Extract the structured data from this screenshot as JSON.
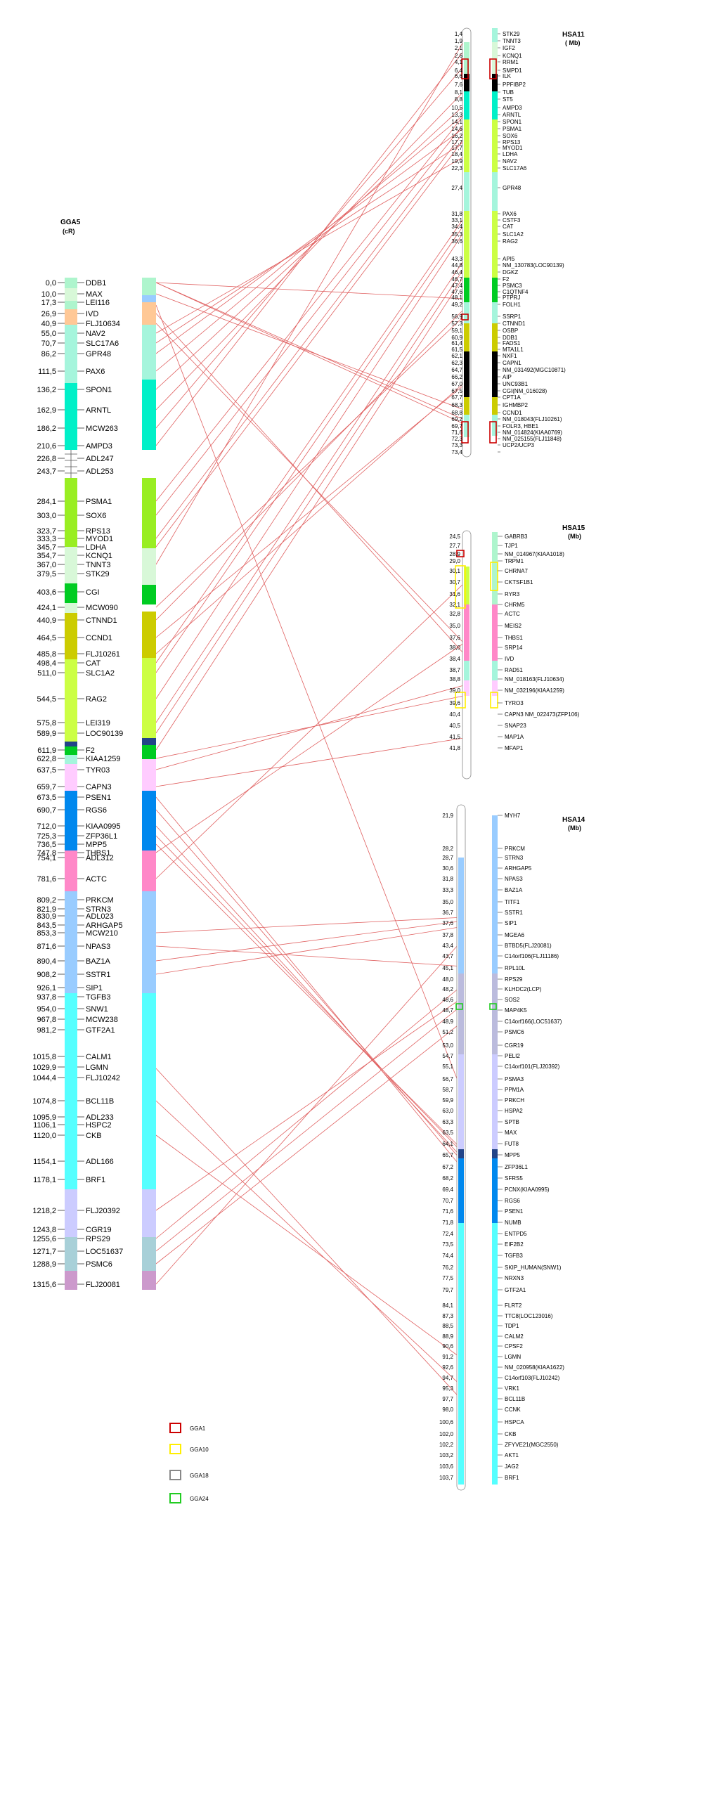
{
  "gga5": {
    "title": "GGA5",
    "unit": "(cR)",
    "markers": [
      {
        "pos": "0,0",
        "name": "DDB1"
      },
      {
        "pos": "10,0",
        "name": "MAX"
      },
      {
        "pos": "17,3",
        "name": "LEI116"
      },
      {
        "pos": "26,9",
        "name": "IVD"
      },
      {
        "pos": "40,9",
        "name": "FLJ10634"
      },
      {
        "pos": "55,0",
        "name": "NAV2"
      },
      {
        "pos": "70,7",
        "name": "SLC17A6"
      },
      {
        "pos": "86,2",
        "name": "GPR48"
      },
      {
        "pos": "111,5",
        "name": "PAX6"
      },
      {
        "pos": "136,2",
        "name": "SPON1"
      },
      {
        "pos": "162,9",
        "name": "ARNTL"
      },
      {
        "pos": "186,2",
        "name": "MCW263"
      },
      {
        "pos": "210,6",
        "name": "AMPD3"
      },
      {
        "pos": "226,8",
        "name": "ADL247"
      },
      {
        "pos": "243,7",
        "name": "ADL253"
      },
      {
        "pos": "284,1",
        "name": "PSMA1"
      },
      {
        "pos": "303,0",
        "name": "SOX6"
      },
      {
        "pos": "323,7",
        "name": "RPS13"
      },
      {
        "pos": "333,3",
        "name": "MYOD1"
      },
      {
        "pos": "345,7",
        "name": "LDHA"
      },
      {
        "pos": "354,7",
        "name": "KCNQ1"
      },
      {
        "pos": "367,0",
        "name": "TNNT3"
      },
      {
        "pos": "379,5",
        "name": "STK29"
      },
      {
        "pos": "403,6",
        "name": "CGI"
      },
      {
        "pos": "424,1",
        "name": "MCW090"
      },
      {
        "pos": "440,9",
        "name": "CTNND1"
      },
      {
        "pos": "464,5",
        "name": "CCND1"
      },
      {
        "pos": "485,8",
        "name": "FLJ10261"
      },
      {
        "pos": "498,4",
        "name": "CAT"
      },
      {
        "pos": "511,0",
        "name": "SLC1A2"
      },
      {
        "pos": "544,5",
        "name": "RAG2"
      },
      {
        "pos": "575,8",
        "name": "LEI319"
      },
      {
        "pos": "589,9",
        "name": "LOC90139"
      },
      {
        "pos": "611,9",
        "name": "F2"
      },
      {
        "pos": "622,8",
        "name": "KIAA1259"
      },
      {
        "pos": "637,5",
        "name": "TYR03"
      },
      {
        "pos": "659,7",
        "name": "CAPN3"
      },
      {
        "pos": "673,5",
        "name": "PSEN1"
      },
      {
        "pos": "690,7",
        "name": "RGS6"
      },
      {
        "pos": "712,0",
        "name": "KIAA0995"
      },
      {
        "pos": "725,3",
        "name": "ZFP36L1"
      },
      {
        "pos": "736,5",
        "name": "MPP5"
      },
      {
        "pos": "747,8",
        "name": "THBS1"
      },
      {
        "pos": "754,1",
        "name": "ADL312"
      },
      {
        "pos": "781,6",
        "name": "ACTC"
      },
      {
        "pos": "809,2",
        "name": "PRKCM"
      },
      {
        "pos": "821,9",
        "name": "STRN3"
      },
      {
        "pos": "830,9",
        "name": "ADL023"
      },
      {
        "pos": "843,5",
        "name": "ARHGAP5"
      },
      {
        "pos": "853,3",
        "name": "MCW210"
      },
      {
        "pos": "871,6",
        "name": "NPAS3"
      },
      {
        "pos": "890,4",
        "name": "BAZ1A"
      },
      {
        "pos": "908,2",
        "name": "SSTR1"
      },
      {
        "pos": "926,1",
        "name": "SIP1"
      },
      {
        "pos": "937,8",
        "name": "TGFB3"
      },
      {
        "pos": "954,0",
        "name": "SNW1"
      },
      {
        "pos": "967,8",
        "name": "MCW238"
      },
      {
        "pos": "981,2",
        "name": "GTF2A1"
      },
      {
        "pos": "1015,8",
        "name": "CALM1"
      },
      {
        "pos": "1029,9",
        "name": "LGMN"
      },
      {
        "pos": "1044,4",
        "name": "FLJ10242"
      },
      {
        "pos": "1074,8",
        "name": "BCL11B"
      },
      {
        "pos": "1095,9",
        "name": "ADL233"
      },
      {
        "pos": "1106,1",
        "name": "HSPC2"
      },
      {
        "pos": "1120,0",
        "name": "CKB"
      },
      {
        "pos": "1154,1",
        "name": "ADL166"
      },
      {
        "pos": "1178,1",
        "name": "BRF1"
      },
      {
        "pos": "1218,2",
        "name": "FLJ20392"
      },
      {
        "pos": "1243,8",
        "name": "CGR19"
      },
      {
        "pos": "1255,6",
        "name": "RPS29"
      },
      {
        "pos": "1271,7",
        "name": "LOC51637"
      },
      {
        "pos": "1288,9",
        "name": "PSMC6"
      },
      {
        "pos": "1315,6",
        "name": "FLJ20081"
      }
    ]
  },
  "hsa11": {
    "title": "HSA11",
    "unit": "( Mb)",
    "markers": [
      {
        "pos": "1,4",
        "name": "STK29"
      },
      {
        "pos": "1,9",
        "name": "TNNT3"
      },
      {
        "pos": "2,1",
        "name": "IGF2"
      },
      {
        "pos": "2,6",
        "name": "KCNQ1"
      },
      {
        "pos": "4,1",
        "name": "RRM1"
      },
      {
        "pos": "6,4",
        "name": "SMPD1"
      },
      {
        "pos": "6,6",
        "name": "ILK"
      },
      {
        "pos": "7,6",
        "name": "PPFIBP2"
      },
      {
        "pos": "8,1",
        "name": "TUB"
      },
      {
        "pos": "8,8",
        "name": "ST5"
      },
      {
        "pos": "10,5",
        "name": "AMPD3"
      },
      {
        "pos": "13,3",
        "name": "ARNTL"
      },
      {
        "pos": "14,1",
        "name": "SPON1"
      },
      {
        "pos": "14,6",
        "name": "PSMA1"
      },
      {
        "pos": "16,2",
        "name": "SOX6"
      },
      {
        "pos": "17,7",
        "name": "RPS13"
      },
      {
        "pos": "17,7",
        "name": "MYOD1"
      },
      {
        "pos": "18,4",
        "name": "LDHA"
      },
      {
        "pos": "19,9",
        "name": "NAV2"
      },
      {
        "pos": "22,3",
        "name": "SLC17A6"
      },
      {
        "pos": "27,4",
        "name": "GPR48"
      },
      {
        "pos": "31,8",
        "name": "PAX6"
      },
      {
        "pos": "33,1",
        "name": "CSTF3"
      },
      {
        "pos": "34,4",
        "name": "CAT"
      },
      {
        "pos": "35,3",
        "name": "SLC1A2"
      },
      {
        "pos": "36,6",
        "name": "RAG2"
      },
      {
        "pos": "43,3",
        "name": "API5"
      },
      {
        "pos": "44,8",
        "name": "NM_130783(LOC90139)"
      },
      {
        "pos": "46,4",
        "name": "DGKZ"
      },
      {
        "pos": "46,7",
        "name": "F2"
      },
      {
        "pos": "47,4",
        "name": "PSMC3"
      },
      {
        "pos": "47,6",
        "name": "C1QTNF4"
      },
      {
        "pos": "48,1",
        "name": "PTPRJ"
      },
      {
        "pos": "49,2",
        "name": "FOLH1"
      },
      {
        "pos": "56,9",
        "name": "SSRP1"
      },
      {
        "pos": "57,3",
        "name": "CTNND1"
      },
      {
        "pos": "59,1",
        "name": "OSBP"
      },
      {
        "pos": "60,9",
        "name": "DDB1"
      },
      {
        "pos": "61,4",
        "name": "FADS1"
      },
      {
        "pos": "61,5",
        "name": "MTA1L1"
      },
      {
        "pos": "62,1",
        "name": "NXF1"
      },
      {
        "pos": "62,3",
        "name": "CAPN1"
      },
      {
        "pos": "64,7",
        "name": "NM_031492(MGC10871)"
      },
      {
        "pos": "66,2",
        "name": "AIP"
      },
      {
        "pos": "67,0",
        "name": "UNC93B1"
      },
      {
        "pos": "67,5",
        "name": "CGI(NM_016028)"
      },
      {
        "pos": "67,7",
        "name": "CPT1A"
      },
      {
        "pos": "68,3",
        "name": "IGHMBP2"
      },
      {
        "pos": "68,8",
        "name": "CCND1"
      },
      {
        "pos": "69,2",
        "name": "NM_018043(FLJ10261)"
      },
      {
        "pos": "69,7",
        "name": "FOLR3, HBE1"
      },
      {
        "pos": "71,6",
        "name": "NM_014824(KIAA0769)"
      },
      {
        "pos": "72,3",
        "name": "NM_025155(FLJ11848)"
      },
      {
        "pos": "73,3",
        "name": "UCP2/UCP3"
      },
      {
        "pos": "73,4",
        "name": ""
      }
    ]
  },
  "hsa15": {
    "title": "HSA15",
    "unit": "(Mb)",
    "markers": [
      {
        "pos": "24,5",
        "name": "GABRB3"
      },
      {
        "pos": "27,7",
        "name": "TJP1"
      },
      {
        "pos": "28,9",
        "name": "NM_014967(KIAA1018)"
      },
      {
        "pos": "29,0",
        "name": "TRPM1"
      },
      {
        "pos": "30,1",
        "name": "CHRNA7"
      },
      {
        "pos": "30,7",
        "name": "CKTSF1B1"
      },
      {
        "pos": "31,6",
        "name": "RYR3"
      },
      {
        "pos": "32,1",
        "name": "CHRM5"
      },
      {
        "pos": "32,8",
        "name": "ACTC"
      },
      {
        "pos": "35,0",
        "name": "MEIS2"
      },
      {
        "pos": "37,6",
        "name": "THBS1"
      },
      {
        "pos": "38,0",
        "name": "SRP14"
      },
      {
        "pos": "38,4",
        "name": "IVD"
      },
      {
        "pos": "38,7",
        "name": "RAD51"
      },
      {
        "pos": "38,8",
        "name": "NM_018163(FLJ10634)"
      },
      {
        "pos": "39,0",
        "name": "NM_032196(KIAA1259)"
      },
      {
        "pos": "39,6",
        "name": "TYRO3"
      },
      {
        "pos": "40,4",
        "name": "CAPN3  NM_022473(ZFP106)"
      },
      {
        "pos": "40,5",
        "name": "SNAP23"
      },
      {
        "pos": "41,5",
        "name": "MAP1A"
      },
      {
        "pos": "41,8",
        "name": "MFAP1"
      }
    ]
  },
  "hsa14": {
    "title": "HSA14",
    "unit": "(Mb)",
    "markers": [
      {
        "pos": "21,9",
        "name": "MYH7"
      },
      {
        "pos": "28,2",
        "name": "PRKCM"
      },
      {
        "pos": "28,7",
        "name": "STRN3"
      },
      {
        "pos": "30,6",
        "name": "ARHGAP5"
      },
      {
        "pos": "31,8",
        "name": "NPAS3"
      },
      {
        "pos": "33,3",
        "name": "BAZ1A"
      },
      {
        "pos": "35,0",
        "name": "TITF1"
      },
      {
        "pos": "36,7",
        "name": "SSTR1"
      },
      {
        "pos": "37,6",
        "name": "SIP1"
      },
      {
        "pos": "37,8",
        "name": "MGEA6"
      },
      {
        "pos": "43,4",
        "name": "BTBD5(FLJ20081)"
      },
      {
        "pos": "43,7",
        "name": "C14orf106(FLJ11186)"
      },
      {
        "pos": "45,1",
        "name": "RPL10L"
      },
      {
        "pos": "48,0",
        "name": "RPS29"
      },
      {
        "pos": "48,2",
        "name": "KLHDC2(LCP)"
      },
      {
        "pos": "48,6",
        "name": "SOS2"
      },
      {
        "pos": "48,7",
        "name": "MAP4K5"
      },
      {
        "pos": "48,9",
        "name": "C14orf166(LOC51637)"
      },
      {
        "pos": "51,2",
        "name": "PSMC6"
      },
      {
        "pos": "53,0",
        "name": "CGR19"
      },
      {
        "pos": "54,7",
        "name": "PELI2"
      },
      {
        "pos": "55,1",
        "name": "C14orf101(FLJ20392)"
      },
      {
        "pos": "56,7",
        "name": "PSMA3"
      },
      {
        "pos": "58,7",
        "name": "PPM1A"
      },
      {
        "pos": "59,9",
        "name": "PRKCH"
      },
      {
        "pos": "63,0",
        "name": "HSPA2"
      },
      {
        "pos": "63,3",
        "name": "SPTB"
      },
      {
        "pos": "63,5",
        "name": "MAX"
      },
      {
        "pos": "64,1",
        "name": "FUT8"
      },
      {
        "pos": "65,7",
        "name": "MPP5"
      },
      {
        "pos": "67,2",
        "name": "ZFP36L1"
      },
      {
        "pos": "68,2",
        "name": "SFRS5"
      },
      {
        "pos": "69,4",
        "name": "PCNX(KIAA0995)"
      },
      {
        "pos": "70,7",
        "name": "RGS6"
      },
      {
        "pos": "71,6",
        "name": "PSEN1"
      },
      {
        "pos": "71,8",
        "name": "NUMB"
      },
      {
        "pos": "72,4",
        "name": "ENTPD5"
      },
      {
        "pos": "73,5",
        "name": "EIF2B2"
      },
      {
        "pos": "74,4",
        "name": "TGFB3"
      },
      {
        "pos": "76,2",
        "name": "SKIP_HUMAN(SNW1)"
      },
      {
        "pos": "77,5",
        "name": "NRXN3"
      },
      {
        "pos": "79,7",
        "name": "GTF2A1"
      },
      {
        "pos": "84,1",
        "name": "FLRT2"
      },
      {
        "pos": "87,3",
        "name": "TTC8(LOC123016)"
      },
      {
        "pos": "88,5",
        "name": "TDP1"
      },
      {
        "pos": "88,9",
        "name": "CALM2"
      },
      {
        "pos": "90,6",
        "name": "CPSF2"
      },
      {
        "pos": "91,2",
        "name": "LGMN"
      },
      {
        "pos": "92,6",
        "name": "NM_020958(KIAA1622)"
      },
      {
        "pos": "94,7",
        "name": "C14orf103(FLJ10242)"
      },
      {
        "pos": "95,3",
        "name": "VRK1"
      },
      {
        "pos": "97,7",
        "name": "BCL11B"
      },
      {
        "pos": "98,0",
        "name": "CCNK"
      },
      {
        "pos": "100,6",
        "name": "HSPCA"
      },
      {
        "pos": "102,0",
        "name": "CKB"
      },
      {
        "pos": "102,2",
        "name": "ZFYVE21(MGC2550)"
      },
      {
        "pos": "103,2",
        "name": "AKT1"
      },
      {
        "pos": "103,6",
        "name": "JAG2"
      },
      {
        "pos": "103,7",
        "name": "BRF1"
      }
    ]
  },
  "legend": [
    {
      "label": "GGA1",
      "color": "#cc0000"
    },
    {
      "label": "GGA10",
      "color": "#ffee00"
    },
    {
      "label": "GGA18",
      "color": "#888888"
    },
    {
      "label": "GGA24",
      "color": "#22cc22"
    }
  ],
  "colors": {
    "connector": "#e06060",
    "mint": "#aef5cd",
    "peach": "#ffc896",
    "turquoise": "#00f0c8",
    "lightaqua": "#a5f5dc",
    "lime": "#99ee22",
    "pale": "#d8f8d8",
    "green": "#00cc22",
    "olive": "#cccc00",
    "yellowgreen": "#ccff44",
    "navy": "#224488",
    "pinklight": "#ffccff",
    "blue": "#0088ee",
    "pink": "#ff88c8",
    "lightblue": "#99ccff",
    "cyan": "#55ffff",
    "lavender": "#ccccff",
    "lilac": "#bbbbdd",
    "slate": "#a8d0d8",
    "mauve": "#cc99cc",
    "black": "#000000"
  }
}
